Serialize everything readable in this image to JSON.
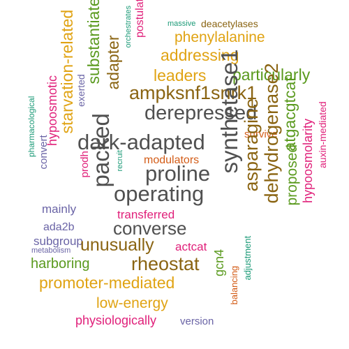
{
  "words": {
    "massive": "massive",
    "deacetylases": "deacetylases",
    "orchestrates": "orchestrates",
    "postulated": "postulated",
    "phenylalanine": "phenylalanine",
    "addressing": "addressing",
    "leaders": "leaders",
    "particularly": "particularly",
    "ampksnf1snrk1": "ampksnf1snrk1",
    "derepressed": "derepressed",
    "dark_adapted": "dark-adapted",
    "adapter": "adapter",
    "substantiate": "substantiate",
    "exerted": "exerted",
    "starvation_related": "starvation-related",
    "hypoosmotic": "hypoosmotic",
    "pharmacological": "pharmacological",
    "convert": "convert",
    "modulators": "modulators",
    "proline": "proline",
    "recruit": "recruit",
    "prodh": "prodh",
    "packed": "packed",
    "operating": "operating",
    "synthetase1": "synthetase1",
    "survive": "survive",
    "auxin_mediated": "auxin-mediated",
    "atgacgtcat": "atgacgtcat",
    "asparagine": "asparagine",
    "dehydrogenase2": "dehydrogenase2",
    "proposed": "proposed",
    "hypoosmolarity": "hypoosmolarity",
    "mainly": "mainly",
    "transferred": "transferred",
    "converse": "converse",
    "ada2b": "ada2b",
    "subgroup": "subgroup",
    "metabolism": "metabolism",
    "unusually": "unusually",
    "actcat": "actcat",
    "rheostat": "rheostat",
    "harboring": "harboring",
    "gcn4": "gcn4",
    "adjustment": "adjustment",
    "balancing": "balancing",
    "promoter_mediated": "promoter-mediated",
    "low_energy": "low-energy",
    "physiologically": "physiologically",
    "version": "version"
  },
  "colors": {
    "gray": "#505050",
    "brown": "#8a6412",
    "orange": "#e0a313",
    "green": "#5a9a1e",
    "teal": "#1b9a77",
    "pink": "#e0207a",
    "purple": "#6a64a6",
    "rust": "#d35c17"
  }
}
